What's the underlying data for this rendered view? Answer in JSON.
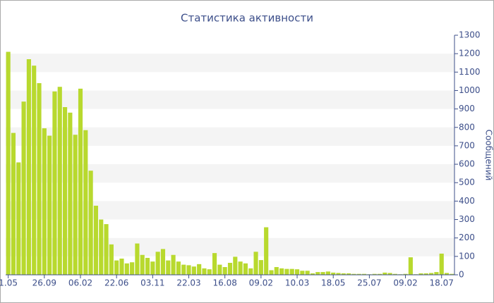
{
  "chart_data": {
    "type": "bar",
    "title": "Статистика активности",
    "y_axis_label": "Сообщений",
    "categories": [
      "1.05",
      null,
      null,
      null,
      null,
      null,
      null,
      "26.09",
      null,
      null,
      null,
      null,
      null,
      null,
      "06.02",
      null,
      null,
      null,
      null,
      null,
      null,
      "22.06",
      null,
      null,
      null,
      null,
      null,
      null,
      "03.11",
      null,
      null,
      null,
      null,
      null,
      null,
      "22.03",
      null,
      null,
      null,
      null,
      null,
      null,
      "16.08",
      null,
      null,
      null,
      null,
      null,
      null,
      "09.02",
      null,
      null,
      null,
      null,
      null,
      null,
      "10.03",
      null,
      null,
      null,
      null,
      null,
      null,
      "18.05",
      null,
      null,
      null,
      null,
      null,
      null,
      "25.07",
      null,
      null,
      null,
      null,
      null,
      null,
      "09.02",
      null,
      null,
      null,
      null,
      null,
      null,
      "18.07",
      null,
      null
    ],
    "values": [
      1210,
      770,
      610,
      940,
      1170,
      1135,
      1040,
      795,
      755,
      995,
      1020,
      910,
      880,
      760,
      1010,
      785,
      565,
      375,
      300,
      275,
      165,
      78,
      88,
      62,
      68,
      170,
      108,
      92,
      72,
      125,
      140,
      78,
      108,
      72,
      55,
      52,
      45,
      58,
      35,
      30,
      118,
      55,
      42,
      65,
      98,
      72,
      62,
      35,
      125,
      80,
      258,
      25,
      42,
      35,
      32,
      32,
      30,
      22,
      22,
      8,
      15,
      15,
      18,
      12,
      10,
      8,
      8,
      5,
      5,
      5,
      3,
      5,
      5,
      12,
      10,
      5,
      3,
      5,
      95,
      3,
      8,
      8,
      10,
      15,
      115,
      10,
      5
    ],
    "color": "#b8d92e",
    "ylim": [
      0,
      1300
    ],
    "yticks": [
      0,
      100,
      200,
      300,
      400,
      500,
      600,
      700,
      800,
      900,
      1000,
      1100,
      1200,
      1300
    ],
    "grid": true,
    "y_axis_side": "right"
  }
}
